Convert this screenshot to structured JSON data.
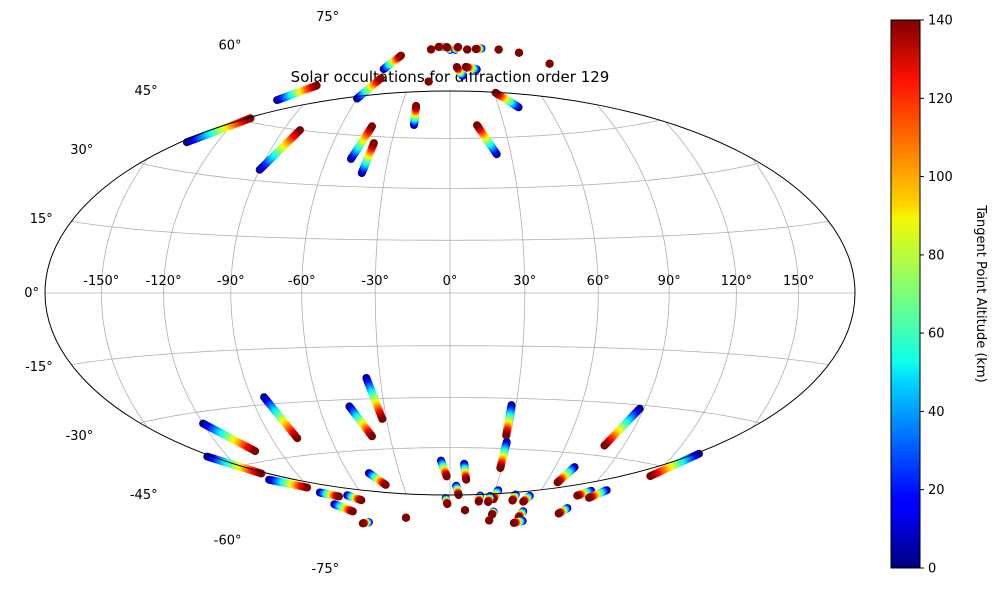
{
  "chart_data": {
    "type": "scatter",
    "projection": "hammer",
    "title": "Solar occultations for diffraction order 129",
    "grid": true,
    "x_tick_labels": [
      "-150°",
      "-120°",
      "-90°",
      "-60°",
      "-30°",
      "0°",
      "30°",
      "60°",
      "90°",
      "120°",
      "150°"
    ],
    "x_ticks": [
      -150,
      -120,
      -90,
      -60,
      -30,
      0,
      30,
      60,
      90,
      120,
      150
    ],
    "y_tick_labels": [
      "-75°",
      "-60°",
      "-45°",
      "-30°",
      "-15°",
      "0°",
      "15°",
      "30°",
      "45°",
      "60°",
      "75°"
    ],
    "y_ticks": [
      -75,
      -60,
      -45,
      -30,
      -15,
      0,
      15,
      30,
      45,
      60,
      75
    ],
    "colorbar": {
      "label": "Tangent Point Altitude (km)",
      "min": 0,
      "max": 140,
      "ticks": [
        "0",
        "20",
        "40",
        "60",
        "80",
        "100",
        "120",
        "140"
      ],
      "colormap": "jet"
    },
    "tracks": [
      {
        "start": [
          -136,
          37
        ],
        "end": [
          -113,
          46
        ]
      },
      {
        "start": [
          -108,
          52
        ],
        "end": [
          -93,
          58
        ]
      },
      {
        "start": [
          -90,
          33
        ],
        "end": [
          -81,
          45
        ]
      },
      {
        "start": [
          -60,
          56
        ],
        "end": [
          -53,
          63
        ]
      },
      {
        "start": [
          -56,
          66
        ],
        "end": [
          -50,
          71
        ]
      },
      {
        "start": [
          -48,
          38
        ],
        "end": [
          -43,
          48
        ]
      },
      {
        "start": [
          -41,
          34
        ],
        "end": [
          -39,
          43
        ]
      },
      {
        "start": [
          -20,
          49
        ],
        "end": [
          -21,
          55
        ]
      },
      {
        "start": [
          10,
          65
        ],
        "end": [
          6,
          68
        ]
      },
      {
        "start": [
          23,
          40
        ],
        "end": [
          15,
          49
        ]
      },
      {
        "start": [
          23,
          67
        ],
        "end": [
          14,
          68
        ]
      },
      {
        "start": [
          42,
          54
        ],
        "end": [
          31,
          59
        ]
      },
      {
        "start": [
          37,
          74
        ],
        "end": [
          30,
          74
        ]
      },
      {
        "start": [
          -16,
          63
        ],
        "end": [
          -16,
          63
        ]
      },
      {
        "start": [
          -22,
          74
        ],
        "end": [
          -22,
          74
        ]
      },
      {
        "start": [
          -10,
          75
        ],
        "end": [
          -14,
          75
        ]
      },
      {
        "start": [
          0,
          74
        ],
        "end": [
          -4,
          75
        ]
      },
      {
        "start": [
          6,
          74
        ],
        "end": [
          10,
          75
        ]
      },
      {
        "start": [
          20,
          74
        ],
        "end": [
          20,
          74
        ]
      },
      {
        "start": [
          55,
          73
        ],
        "end": [
          55,
          73
        ]
      },
      {
        "start": [
          72,
          71
        ],
        "end": [
          72,
          71
        ]
      },
      {
        "start": [
          87,
          66
        ],
        "end": [
          87,
          66
        ]
      },
      {
        "start": [
          -84,
          -28
        ],
        "end": [
          -77,
          -40
        ]
      },
      {
        "start": [
          -36,
          -24
        ],
        "end": [
          -32,
          -36
        ]
      },
      {
        "start": [
          -46,
          -32
        ],
        "end": [
          -39,
          -41
        ]
      },
      {
        "start": [
          -120,
          -33
        ],
        "end": [
          -103,
          -42
        ]
      },
      {
        "start": [
          -131,
          -41
        ],
        "end": [
          -110,
          -48
        ]
      },
      {
        "start": [
          -109,
          -50
        ],
        "end": [
          -91,
          -54
        ]
      },
      {
        "start": [
          -86,
          -56
        ],
        "end": [
          -76,
          -58
        ]
      },
      {
        "start": [
          -70,
          -58
        ],
        "end": [
          -63,
          -60
        ]
      },
      {
        "start": [
          -84,
          -60
        ],
        "end": [
          -76,
          -63
        ]
      },
      {
        "start": [
          -48,
          -52
        ],
        "end": [
          -41,
          -56
        ]
      },
      {
        "start": [
          -5,
          -49
        ],
        "end": [
          -2,
          -54
        ]
      },
      {
        "start": [
          8,
          -50
        ],
        "end": [
          10,
          -55
        ]
      },
      {
        "start": [
          4,
          -57
        ],
        "end": [
          6,
          -60
        ]
      },
      {
        "start": [
          -3,
          -61
        ],
        "end": [
          -2,
          -63
        ]
      },
      {
        "start": [
          28,
          -32
        ],
        "end": [
          28,
          -41
        ]
      },
      {
        "start": [
          29,
          -43
        ],
        "end": [
          29,
          -51
        ]
      },
      {
        "start": [
          88,
          -31
        ],
        "end": [
          80,
          -42
        ]
      },
      {
        "start": [
          71,
          -49
        ],
        "end": [
          67,
          -54
        ]
      },
      {
        "start": [
          92,
          -55
        ],
        "end": [
          86,
          -57
        ]
      },
      {
        "start": [
          101,
          -54
        ],
        "end": [
          95,
          -57
        ]
      },
      {
        "start": [
          133,
          -40
        ],
        "end": [
          118,
          -48
        ]
      },
      {
        "start": [
          32,
          -58
        ],
        "end": [
          31,
          -61
        ]
      },
      {
        "start": [
          45,
          -59
        ],
        "end": [
          45,
          -61
        ]
      },
      {
        "start": [
          55,
          -59
        ],
        "end": [
          53,
          -61
        ]
      },
      {
        "start": [
          88,
          -61
        ],
        "end": [
          86,
          -63
        ]
      },
      {
        "start": [
          21,
          -60
        ],
        "end": [
          21,
          -62
        ]
      },
      {
        "start": [
          28,
          -60
        ],
        "end": [
          28,
          -62
        ]
      },
      {
        "start": [
          -38,
          -67
        ],
        "end": [
          -38,
          -67
        ]
      },
      {
        "start": [
          -72,
          -67
        ],
        "end": [
          -78,
          -67
        ]
      },
      {
        "start": [
          12,
          -65
        ],
        "end": [
          12,
          -65
        ]
      },
      {
        "start": [
          35,
          -65
        ],
        "end": [
          35,
          -66
        ]
      },
      {
        "start": [
          58,
          -64
        ],
        "end": [
          58,
          -66
        ]
      },
      {
        "start": [
          64,
          -67
        ],
        "end": [
          58,
          -68
        ]
      },
      {
        "start": [
          35,
          -68
        ],
        "end": [
          35,
          -68
        ]
      }
    ]
  }
}
